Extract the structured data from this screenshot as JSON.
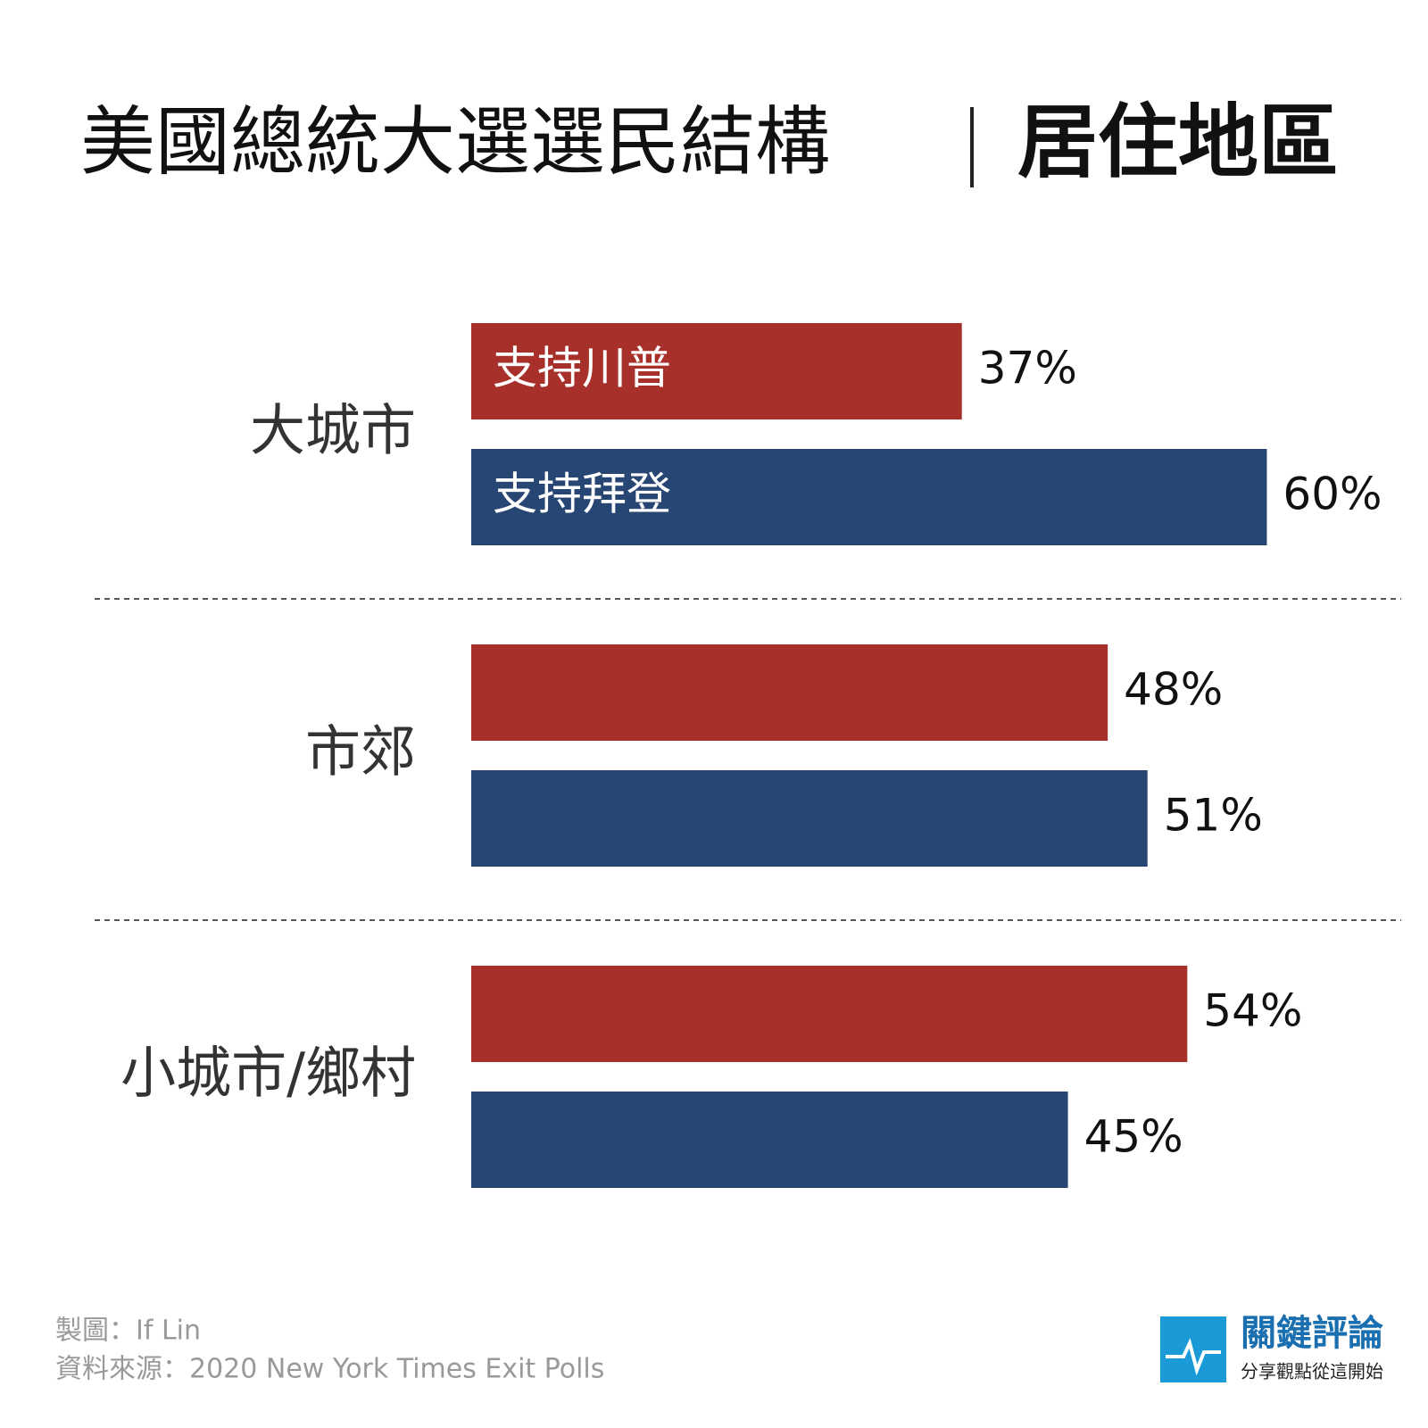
{
  "chart_data": {
    "type": "bar",
    "orientation": "horizontal",
    "title": "美國總統大選選民結構",
    "subtitle": "居住地區",
    "categories": [
      "大城市",
      "市郊",
      "小城市/鄉村"
    ],
    "series": [
      {
        "name": "支持川普",
        "color": "#a8302a",
        "values": [
          37,
          48,
          54
        ],
        "value_labels": [
          "37%",
          "48%",
          "54%"
        ]
      },
      {
        "name": "支持拜登",
        "color": "#284674",
        "values": [
          60,
          51,
          45
        ],
        "value_labels": [
          "60%",
          "51%",
          "45%"
        ]
      }
    ],
    "xlim": [
      0,
      70
    ],
    "credit": "製圖：If Lin",
    "source": "資料來源：2020 New York Times Exit Polls",
    "logo": {
      "name": "關鍵評論",
      "tagline": "分享觀點從這開始"
    }
  }
}
